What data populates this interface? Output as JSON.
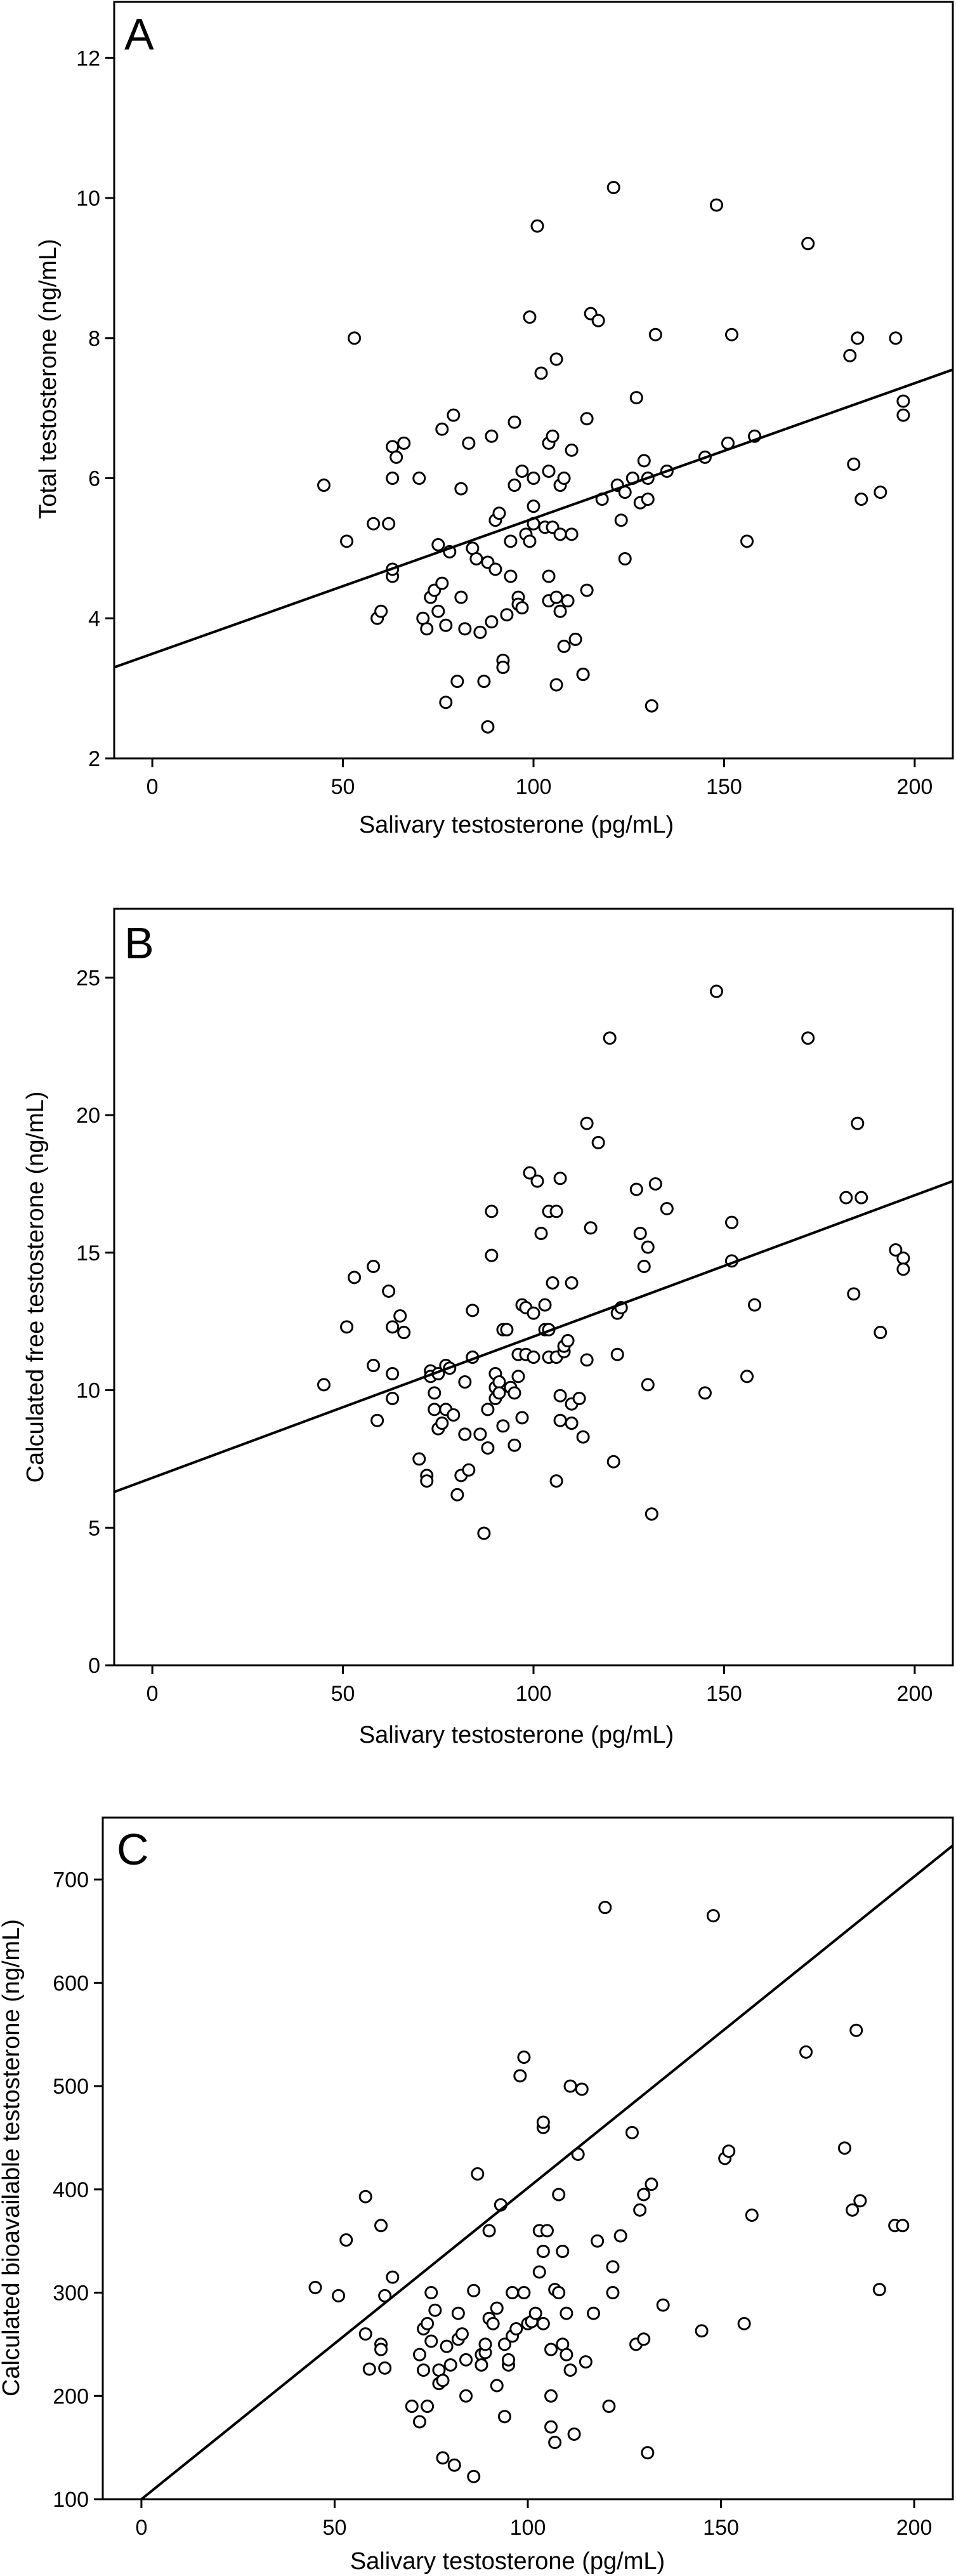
{
  "chart_data": [
    {
      "type": "scatter",
      "panel_label": "A",
      "xlabel": "Salivary testosterone (pg/mL)",
      "ylabel": "Total testosterone (ng/mL)",
      "xlim": [
        -10,
        210
      ],
      "ylim": [
        2,
        12.8
      ],
      "xticks": [
        0,
        50,
        100,
        150,
        200
      ],
      "yticks": [
        2,
        4,
        6,
        8,
        10,
        12
      ],
      "fit_line": [
        [
          -10,
          3.3
        ],
        [
          210,
          7.55
        ]
      ],
      "points": [
        [
          45,
          5.9
        ],
        [
          51,
          5.1
        ],
        [
          53,
          8.0
        ],
        [
          58,
          5.35
        ],
        [
          59,
          4.0
        ],
        [
          60,
          4.1
        ],
        [
          62,
          5.35
        ],
        [
          63,
          6.45
        ],
        [
          63,
          6.0
        ],
        [
          63,
          4.6
        ],
        [
          63,
          4.7
        ],
        [
          64,
          6.3
        ],
        [
          66,
          6.5
        ],
        [
          70,
          6.0
        ],
        [
          71,
          4.0
        ],
        [
          72,
          3.85
        ],
        [
          73,
          4.3
        ],
        [
          74,
          4.4
        ],
        [
          75,
          5.05
        ],
        [
          75,
          4.1
        ],
        [
          76,
          4.5
        ],
        [
          76,
          6.7
        ],
        [
          77,
          2.8
        ],
        [
          77,
          3.9
        ],
        [
          78,
          4.95
        ],
        [
          79,
          6.9
        ],
        [
          80,
          3.1
        ],
        [
          81,
          5.85
        ],
        [
          81,
          4.3
        ],
        [
          82,
          3.85
        ],
        [
          83,
          6.5
        ],
        [
          84,
          5.0
        ],
        [
          85,
          4.85
        ],
        [
          86,
          3.8
        ],
        [
          87,
          3.1
        ],
        [
          88,
          2.45
        ],
        [
          88,
          4.8
        ],
        [
          89,
          6.6
        ],
        [
          89,
          3.95
        ],
        [
          90,
          5.4
        ],
        [
          90,
          4.7
        ],
        [
          91,
          5.5
        ],
        [
          92,
          3.4
        ],
        [
          92,
          3.3
        ],
        [
          93,
          4.05
        ],
        [
          94,
          5.1
        ],
        [
          94,
          4.6
        ],
        [
          95,
          5.9
        ],
        [
          95,
          6.8
        ],
        [
          96,
          4.3
        ],
        [
          96,
          4.2
        ],
        [
          97,
          4.15
        ],
        [
          97,
          6.1
        ],
        [
          98,
          5.2
        ],
        [
          99,
          8.3
        ],
        [
          99,
          5.1
        ],
        [
          100,
          5.35
        ],
        [
          100,
          5.6
        ],
        [
          100,
          6.0
        ],
        [
          101,
          9.6
        ],
        [
          102,
          7.5
        ],
        [
          103,
          5.3
        ],
        [
          104,
          4.6
        ],
        [
          104,
          6.5
        ],
        [
          104,
          4.25
        ],
        [
          104,
          6.1
        ],
        [
          105,
          6.6
        ],
        [
          105,
          5.3
        ],
        [
          106,
          3.05
        ],
        [
          106,
          4.3
        ],
        [
          106,
          7.7
        ],
        [
          107,
          4.1
        ],
        [
          107,
          5.9
        ],
        [
          107,
          5.2
        ],
        [
          108,
          3.6
        ],
        [
          108,
          6.0
        ],
        [
          109,
          4.25
        ],
        [
          110,
          5.2
        ],
        [
          110,
          6.4
        ],
        [
          111,
          3.7
        ],
        [
          113,
          3.2
        ],
        [
          113,
          3.2
        ],
        [
          114,
          4.4
        ],
        [
          114,
          6.85
        ],
        [
          115,
          8.35
        ],
        [
          117,
          8.25
        ],
        [
          118,
          5.7
        ],
        [
          121,
          10.15
        ],
        [
          122,
          5.9
        ],
        [
          123,
          5.4
        ],
        [
          124,
          5.8
        ],
        [
          124,
          4.85
        ],
        [
          126,
          6.0
        ],
        [
          127,
          7.15
        ],
        [
          128,
          5.65
        ],
        [
          129,
          6.25
        ],
        [
          130,
          5.7
        ],
        [
          130,
          6.0
        ],
        [
          131,
          2.75
        ],
        [
          132,
          8.05
        ],
        [
          135,
          6.1
        ],
        [
          145,
          6.3
        ],
        [
          148,
          9.9
        ],
        [
          151,
          6.5
        ],
        [
          152,
          8.05
        ],
        [
          156,
          5.1
        ],
        [
          158,
          6.6
        ],
        [
          172,
          9.35
        ],
        [
          183,
          7.75
        ],
        [
          184,
          6.2
        ],
        [
          185,
          8.0
        ],
        [
          186,
          5.7
        ],
        [
          191,
          5.8
        ],
        [
          195,
          8.0
        ],
        [
          197,
          7.1
        ],
        [
          197,
          6.9
        ]
      ]
    },
    {
      "type": "scatter",
      "panel_label": "B",
      "xlabel": "Salivary testosterone (pg/mL)",
      "ylabel": "Calculated free testosterone (ng/mL)",
      "xlim": [
        -10,
        210
      ],
      "ylim": [
        0,
        27.5
      ],
      "xticks": [
        0,
        50,
        100,
        150,
        200
      ],
      "yticks": [
        0,
        5,
        10,
        15,
        20,
        25
      ],
      "fit_line": [
        [
          -10,
          6.3
        ],
        [
          210,
          17.6
        ]
      ],
      "points": [
        [
          45,
          10.2
        ],
        [
          51,
          12.3
        ],
        [
          53,
          14.1
        ],
        [
          58,
          14.5
        ],
        [
          58,
          10.9
        ],
        [
          59,
          8.9
        ],
        [
          62,
          13.6
        ],
        [
          63,
          12.3
        ],
        [
          63,
          10.6
        ],
        [
          63,
          9.7
        ],
        [
          65,
          12.7
        ],
        [
          66,
          12.1
        ],
        [
          70,
          7.5
        ],
        [
          72,
          6.9
        ],
        [
          72,
          6.7
        ],
        [
          73,
          10.7
        ],
        [
          73,
          10.5
        ],
        [
          74,
          9.3
        ],
        [
          74,
          9.9
        ],
        [
          75,
          10.6
        ],
        [
          75,
          8.6
        ],
        [
          76,
          8.8
        ],
        [
          77,
          10.9
        ],
        [
          77,
          9.3
        ],
        [
          78,
          10.8
        ],
        [
          79,
          9.1
        ],
        [
          80,
          6.2
        ],
        [
          81,
          6.9
        ],
        [
          82,
          8.4
        ],
        [
          82,
          10.3
        ],
        [
          83,
          7.1
        ],
        [
          84,
          12.9
        ],
        [
          84,
          11.2
        ],
        [
          86,
          8.4
        ],
        [
          87,
          4.8
        ],
        [
          88,
          9.3
        ],
        [
          88,
          7.9
        ],
        [
          89,
          14.9
        ],
        [
          89,
          16.5
        ],
        [
          90,
          10.6
        ],
        [
          90,
          10.1
        ],
        [
          90,
          9.7
        ],
        [
          91,
          10.3
        ],
        [
          91,
          9.9
        ],
        [
          92,
          8.7
        ],
        [
          92,
          12.2
        ],
        [
          93,
          12.2
        ],
        [
          94,
          10.1
        ],
        [
          95,
          9.9
        ],
        [
          95,
          8.0
        ],
        [
          96,
          10.5
        ],
        [
          96,
          11.3
        ],
        [
          97,
          13.1
        ],
        [
          97,
          9.0
        ],
        [
          98,
          11.3
        ],
        [
          98,
          13.0
        ],
        [
          99,
          17.9
        ],
        [
          100,
          12.8
        ],
        [
          100,
          11.2
        ],
        [
          101,
          17.6
        ],
        [
          102,
          15.7
        ],
        [
          103,
          13.1
        ],
        [
          103,
          12.2
        ],
        [
          104,
          12.2
        ],
        [
          104,
          16.5
        ],
        [
          104,
          11.2
        ],
        [
          105,
          13.9
        ],
        [
          106,
          11.2
        ],
        [
          106,
          16.5
        ],
        [
          106,
          6.7
        ],
        [
          107,
          17.7
        ],
        [
          107,
          9.8
        ],
        [
          107,
          8.9
        ],
        [
          108,
          11.4
        ],
        [
          108,
          11.6
        ],
        [
          109,
          11.8
        ],
        [
          110,
          13.9
        ],
        [
          110,
          9.5
        ],
        [
          110,
          8.8
        ],
        [
          112,
          9.7
        ],
        [
          113,
          8.3
        ],
        [
          114,
          19.7
        ],
        [
          114,
          11.1
        ],
        [
          115,
          15.9
        ],
        [
          117,
          19.0
        ],
        [
          120,
          22.8
        ],
        [
          121,
          7.4
        ],
        [
          122,
          12.8
        ],
        [
          122,
          11.3
        ],
        [
          123,
          13.0
        ],
        [
          127,
          17.3
        ],
        [
          128,
          15.7
        ],
        [
          129,
          14.5
        ],
        [
          130,
          15.2
        ],
        [
          130,
          10.2
        ],
        [
          131,
          5.5
        ],
        [
          132,
          17.5
        ],
        [
          135,
          16.6
        ],
        [
          145,
          9.9
        ],
        [
          148,
          24.5
        ],
        [
          152,
          14.7
        ],
        [
          152,
          16.1
        ],
        [
          156,
          10.5
        ],
        [
          158,
          13.1
        ],
        [
          172,
          22.8
        ],
        [
          182,
          17.0
        ],
        [
          184,
          13.5
        ],
        [
          185,
          19.7
        ],
        [
          186,
          17.0
        ],
        [
          191,
          12.1
        ],
        [
          195,
          15.1
        ],
        [
          197,
          14.8
        ],
        [
          197,
          14.4
        ]
      ]
    },
    {
      "type": "scatter",
      "panel_label": "C",
      "xlabel": "Salivary testosterone (pg/mL)",
      "ylabel": "Calculated bioavailable testosterone (ng/mL)",
      "xlim": [
        -10,
        210
      ],
      "ylim": [
        100,
        760
      ],
      "xticks": [
        0,
        50,
        100,
        150,
        200
      ],
      "yticks": [
        100,
        200,
        300,
        400,
        500,
        600,
        700
      ],
      "fit_line": [
        [
          0,
          100
        ],
        [
          210,
          733
        ]
      ],
      "points": [
        [
          45,
          305
        ],
        [
          51,
          297
        ],
        [
          53,
          351
        ],
        [
          58,
          260
        ],
        [
          58,
          393
        ],
        [
          59,
          226
        ],
        [
          62,
          250
        ],
        [
          62,
          245
        ],
        [
          63,
          227
        ],
        [
          62,
          365
        ],
        [
          63,
          297
        ],
        [
          65,
          315
        ],
        [
          70,
          190
        ],
        [
          72,
          240
        ],
        [
          72,
          175
        ],
        [
          73,
          225
        ],
        [
          73,
          265
        ],
        [
          74,
          270
        ],
        [
          74,
          190
        ],
        [
          75,
          253
        ],
        [
          75,
          300
        ],
        [
          76,
          283
        ],
        [
          77,
          225
        ],
        [
          77,
          212
        ],
        [
          78,
          140
        ],
        [
          78,
          215
        ],
        [
          79,
          248
        ],
        [
          80,
          230
        ],
        [
          81,
          133
        ],
        [
          82,
          255
        ],
        [
          82,
          280
        ],
        [
          83,
          260
        ],
        [
          84,
          200
        ],
        [
          84,
          235
        ],
        [
          86,
          302
        ],
        [
          86,
          122
        ],
        [
          87,
          415
        ],
        [
          88,
          240
        ],
        [
          88,
          230
        ],
        [
          89,
          242
        ],
        [
          89,
          250
        ],
        [
          90,
          360
        ],
        [
          90,
          275
        ],
        [
          91,
          270
        ],
        [
          92,
          285
        ],
        [
          92,
          210
        ],
        [
          93,
          385
        ],
        [
          94,
          250
        ],
        [
          94,
          180
        ],
        [
          95,
          230
        ],
        [
          95,
          235
        ],
        [
          96,
          300
        ],
        [
          96,
          258
        ],
        [
          97,
          265
        ],
        [
          98,
          510
        ],
        [
          99,
          300
        ],
        [
          99,
          528
        ],
        [
          100,
          270
        ],
        [
          101,
          272
        ],
        [
          102,
          280
        ],
        [
          103,
          320
        ],
        [
          103,
          360
        ],
        [
          104,
          460
        ],
        [
          104,
          465
        ],
        [
          104,
          270
        ],
        [
          104,
          340
        ],
        [
          105,
          360
        ],
        [
          106,
          200
        ],
        [
          106,
          245
        ],
        [
          106,
          170
        ],
        [
          107,
          155
        ],
        [
          107,
          303
        ],
        [
          108,
          300
        ],
        [
          108,
          395
        ],
        [
          109,
          250
        ],
        [
          109,
          340
        ],
        [
          110,
          280
        ],
        [
          110,
          240
        ],
        [
          111,
          225
        ],
        [
          111,
          500
        ],
        [
          112,
          163
        ],
        [
          113,
          434
        ],
        [
          114,
          497
        ],
        [
          115,
          233
        ],
        [
          117,
          280
        ],
        [
          118,
          350
        ],
        [
          120,
          673
        ],
        [
          121,
          190
        ],
        [
          122,
          325
        ],
        [
          122,
          300
        ],
        [
          124,
          355
        ],
        [
          127,
          455
        ],
        [
          128,
          250
        ],
        [
          129,
          380
        ],
        [
          130,
          395
        ],
        [
          130,
          255
        ],
        [
          131,
          145
        ],
        [
          132,
          405
        ],
        [
          135,
          288
        ],
        [
          145,
          263
        ],
        [
          148,
          665
        ],
        [
          151,
          430
        ],
        [
          152,
          437
        ],
        [
          156,
          270
        ],
        [
          158,
          375
        ],
        [
          172,
          533
        ],
        [
          182,
          440
        ],
        [
          184,
          380
        ],
        [
          185,
          554
        ],
        [
          186,
          389
        ],
        [
          191,
          303
        ],
        [
          195,
          365
        ],
        [
          197,
          365
        ]
      ]
    }
  ]
}
